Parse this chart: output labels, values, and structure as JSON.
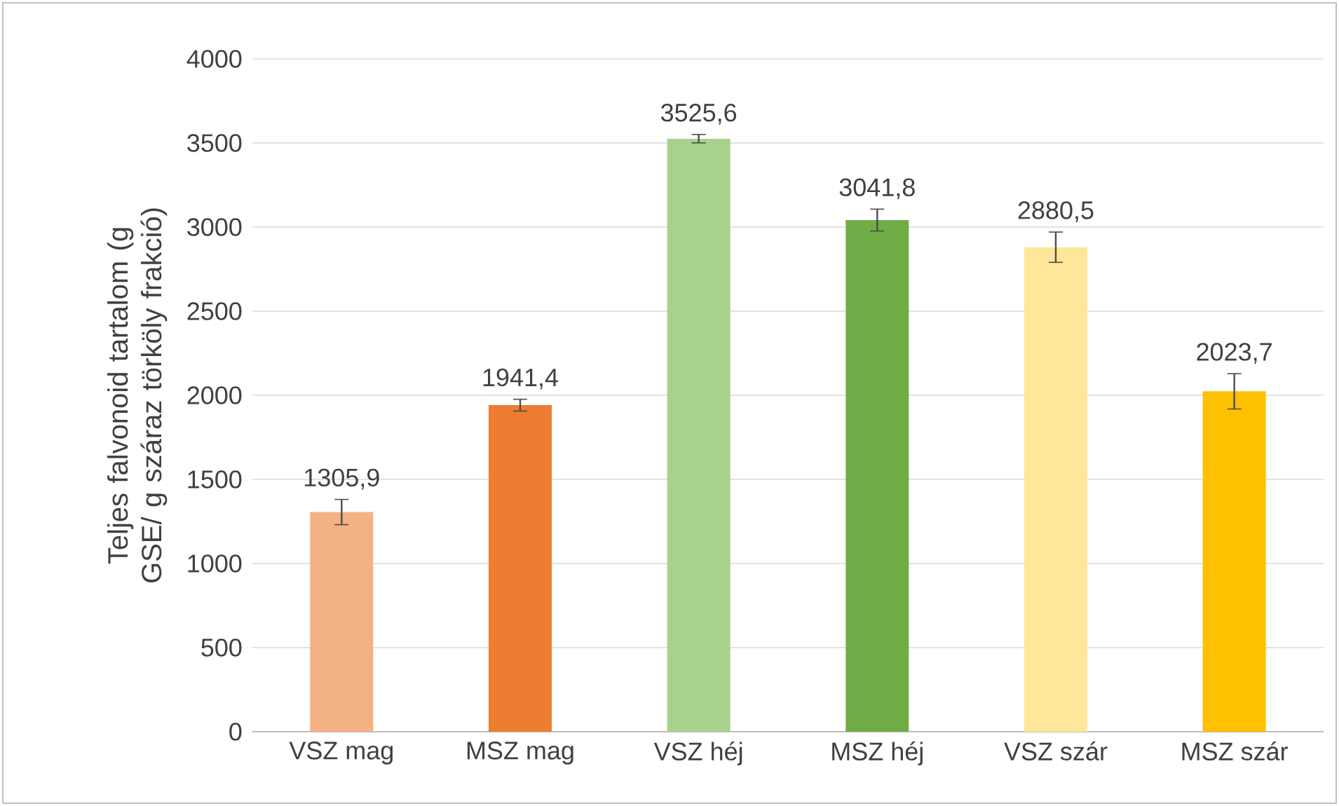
{
  "chart_data": {
    "type": "bar",
    "ylabel": "Teljes falvonoid tartalom (g GSE/ g száraz törköly frakció)",
    "categories": [
      "VSZ mag",
      "MSZ mag",
      "VSZ héj",
      "MSZ héj",
      "VSZ szár",
      "MSZ szár"
    ],
    "values": [
      1305.9,
      1941.4,
      3525.6,
      3041.8,
      2880.5,
      2023.7
    ],
    "errors": [
      75,
      35,
      25,
      65,
      90,
      105
    ],
    "value_labels": [
      "1305,9",
      "1941,4",
      "3525,6",
      "3041,8",
      "2880,5",
      "2023,7"
    ],
    "colors": [
      "#f4b183",
      "#ed7d31",
      "#a9d18e",
      "#70ad47",
      "#ffe699",
      "#ffc000"
    ],
    "ylim": [
      0,
      4000
    ],
    "yticks": [
      0,
      500,
      1000,
      1500,
      2000,
      2500,
      3000,
      3500,
      4000
    ],
    "grid": "y"
  }
}
